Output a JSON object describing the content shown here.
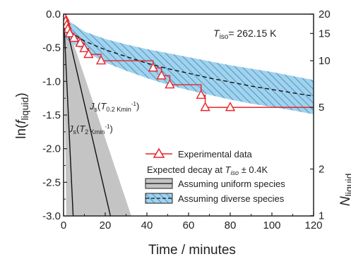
{
  "chart_data": {
    "type": "line",
    "xlabel": "Time / minutes",
    "ylabel": {
      "pre": "ln(",
      "italic": "f",
      "sub": "liquid",
      "post": ")"
    },
    "y2label": {
      "italic": "N",
      "sub": "liquid"
    },
    "xlim": [
      0,
      120
    ],
    "ylim": [
      -3.0,
      0.0
    ],
    "x_ticks": [
      0,
      20,
      40,
      60,
      80,
      100,
      120
    ],
    "x_tick_labels": [
      "0",
      "20",
      "40",
      "60",
      "80",
      "100",
      "120"
    ],
    "y_ticks": [
      0.0,
      -0.5,
      -1.0,
      -1.5,
      -2.0,
      -2.5,
      -3.0
    ],
    "y_tick_labels": [
      "0.0",
      "-0.5",
      "-1.0",
      "-1.5",
      "-2.0",
      "-2.5",
      "-3.0"
    ],
    "y2_ticks": [
      20,
      15,
      10,
      5,
      2,
      1
    ],
    "y2_tick_labels": [
      "20",
      "15",
      "10",
      "5",
      "2",
      "1"
    ],
    "y2_total": 20,
    "annotation_tiso": {
      "italic": "T",
      "sub": "iso",
      "rest": "= 262.15 K"
    },
    "annotation_js1": {
      "J": "J",
      "s": "s",
      "open": "(",
      "T": "T",
      "sub": "0.2 Kmin",
      "sup": "-1",
      "close": ")"
    },
    "annotation_js2": {
      "J": "J",
      "s": "s",
      "open": "(",
      "T": "T",
      "sub": "2 Kmin",
      "sup": "-1",
      "close": ")"
    },
    "legend": {
      "experimental": "Experimental data",
      "decay_title_pre": "Expected decay at ",
      "decay_title_T": "T",
      "decay_title_sub": "iso",
      "decay_title_post": " ± 0.4K",
      "uniform": "Assuming uniform species",
      "diverse": "Assuming diverse species"
    },
    "series": [
      {
        "name": "Experimental data",
        "style": "step",
        "color": "#e8242a",
        "markers": "open-triangle",
        "x": [
          0.5,
          1.0,
          1.5,
          2.0,
          3.0,
          5.0,
          8.0,
          10.0,
          12.0,
          18.0,
          43.0,
          47.0,
          51.0,
          66.0,
          68.0,
          80.0
        ],
        "y": [
          -0.051,
          -0.105,
          -0.163,
          -0.223,
          -0.288,
          -0.357,
          -0.431,
          -0.511,
          -0.598,
          -0.693,
          -0.799,
          -0.916,
          -1.05,
          -1.204,
          -1.386,
          -1.386
        ],
        "step_end_x": 120
      },
      {
        "name": "Assuming diverse species",
        "style": "dashed",
        "color": "#111111",
        "x": [
          0,
          10,
          20,
          30,
          40,
          50,
          60,
          70,
          80,
          90,
          100,
          110,
          120
        ],
        "y": [
          -0.2,
          -0.4,
          -0.53,
          -0.63,
          -0.73,
          -0.81,
          -0.88,
          -0.95,
          -1.01,
          -1.07,
          -1.12,
          -1.17,
          -1.22
        ]
      }
    ],
    "bands": [
      {
        "name": "Assuming diverse species",
        "fill": "#9fd3ee",
        "hatch": "#3a77a8",
        "x": [
          0,
          10,
          20,
          30,
          40,
          50,
          60,
          70,
          80,
          90,
          100,
          110,
          120
        ],
        "upper": [
          -0.05,
          -0.26,
          -0.37,
          -0.45,
          -0.52,
          -0.58,
          -0.64,
          -0.7,
          -0.76,
          -0.81,
          -0.86,
          -0.92,
          -0.98
        ],
        "lower": [
          -0.35,
          -0.55,
          -0.72,
          -0.84,
          -0.95,
          -1.05,
          -1.13,
          -1.2,
          -1.27,
          -1.33,
          -1.38,
          -1.43,
          -1.49
        ]
      },
      {
        "name": "Assuming uniform species",
        "fill": "#c4c4c4",
        "polygon_x": [
          0,
          32.5,
          1.3,
          0
        ],
        "polygon_y": [
          0.0,
          -3.0,
          -3.0,
          0.0
        ]
      }
    ],
    "lines": [
      {
        "name": "Js(T0.2 Kmin-1)",
        "color": "#111111",
        "x": [
          0,
          22.5
        ],
        "y": [
          0.0,
          -3.0
        ]
      },
      {
        "name": "Js(T2 Kmin-1)",
        "color": "#111111",
        "x": [
          0,
          4.6
        ],
        "y": [
          0.0,
          -3.0
        ]
      }
    ],
    "grid": false,
    "colors": {
      "experimental": "#e8242a",
      "band_fill": "#9fd3ee",
      "band_hatch": "#3a77a8",
      "uniform_fill": "#c4c4c4"
    }
  }
}
